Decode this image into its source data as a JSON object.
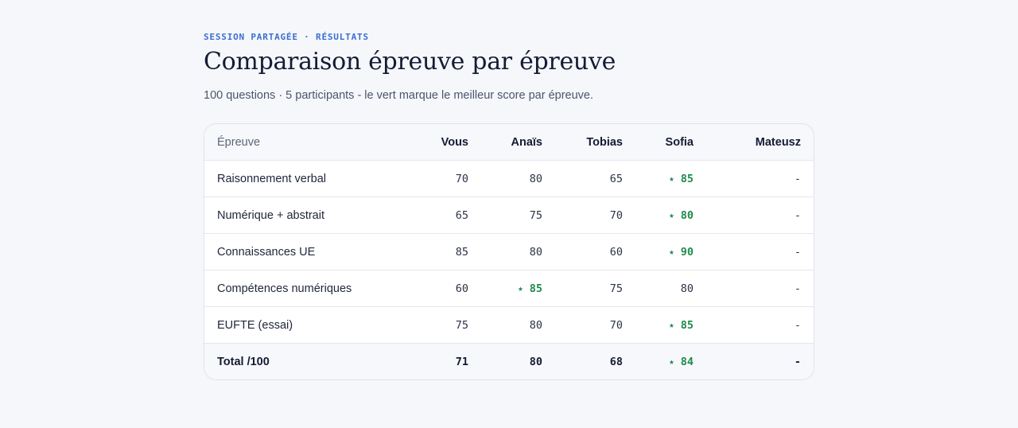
{
  "header": {
    "eyebrow": "SESSION PARTAGÉE · RÉSULTATS",
    "title": "Comparaison épreuve par épreuve",
    "subtitle": "100 questions · 5 participants - le vert marque le meilleur score par épreuve."
  },
  "table": {
    "columns": [
      "Épreuve",
      "Vous",
      "Anaïs",
      "Tobias",
      "Sofia",
      "Mateusz"
    ],
    "best_marker": "★",
    "rows": [
      {
        "label": "Raisonnement verbal",
        "values": [
          "70",
          "80",
          "65",
          "85",
          "-"
        ],
        "best": 3
      },
      {
        "label": "Numérique + abstrait",
        "values": [
          "65",
          "75",
          "70",
          "80",
          "-"
        ],
        "best": 3
      },
      {
        "label": "Connaissances UE",
        "values": [
          "85",
          "80",
          "60",
          "90",
          "-"
        ],
        "best": 3
      },
      {
        "label": "Compétences numériques",
        "values": [
          "60",
          "85",
          "75",
          "80",
          "-"
        ],
        "best": 1
      },
      {
        "label": "EUFTE (essai)",
        "values": [
          "75",
          "80",
          "70",
          "85",
          "-"
        ],
        "best": 3
      }
    ],
    "total": {
      "label": "Total /100",
      "values": [
        "71",
        "80",
        "68",
        "84",
        "-"
      ],
      "best": 3
    }
  },
  "colors": {
    "accent": "#3b6fd0",
    "best": "#1f8a4c",
    "background": "#f5f7fb"
  }
}
